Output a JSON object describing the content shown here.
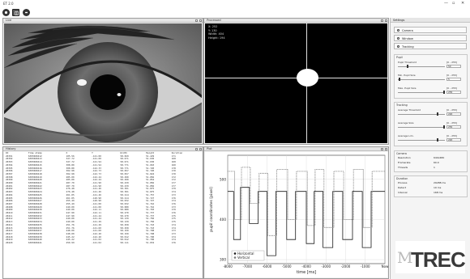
{
  "app": {
    "title": "ET 2.0",
    "window_controls": [
      "—",
      "▫",
      "✕"
    ]
  },
  "toolbar": {
    "buttons": [
      "record-button",
      "settings-button",
      "stop-button"
    ]
  },
  "panels": {
    "live": {
      "title": "Live"
    },
    "processed": {
      "title": "Processed",
      "roi": [
        "X: 252",
        "Y: 130",
        "Width: 404",
        "Height: 194"
      ]
    },
    "history": {
      "title": "History",
      "columns": [
        "ID",
        "Time stamp",
        "X",
        "Y",
        "Width",
        "Height",
        "Duration"
      ],
      "rows": [
        [
          "20391",
          "6383600412",
          "105.56",
          "-121.00",
          "58.829",
          "51.229",
          "171"
        ],
        [
          "20392",
          "6383600413",
          "327.72",
          "-121.00",
          "58.671",
          "51.630",
          "168"
        ],
        [
          "20393",
          "6383600414",
          "327.72",
          "-121.94",
          "58.671",
          "51.630",
          "168"
        ],
        [
          "20394",
          "6383600415",
          "308.80",
          "-121.94",
          "58.771",
          "51.663",
          "160"
        ],
        [
          "20395",
          "6383600416",
          "308.80",
          "-122.33",
          "58.771",
          "51.720",
          "178"
        ],
        [
          "20396",
          "6383600417",
          "302.98",
          "-122.73",
          "58.657",
          "51.720",
          "170"
        ],
        [
          "20397",
          "6383600418",
          "302.98",
          "-122.73",
          "58.657",
          "51.824",
          "170"
        ],
        [
          "20398",
          "6383600419",
          "285.00",
          "-122.44",
          "58.490",
          "51.856",
          "172"
        ],
        [
          "20399",
          "6383600420",
          "285.00",
          "-122.44",
          "58.490",
          "51.854",
          "172"
        ],
        [
          "20400",
          "6383600421",
          "287.70",
          "-121.90",
          "58.439",
          "51.856",
          "177"
        ],
        [
          "20401",
          "6383600422",
          "287.70",
          "-121.90",
          "58.439",
          "51.856",
          "177"
        ],
        [
          "20402",
          "6383600423",
          "276.48",
          "-121.46",
          "58.301",
          "51.875",
          "179"
        ],
        [
          "20403",
          "6383600424",
          "276.48",
          "-121.46",
          "58.301",
          "51.875",
          "174"
        ],
        [
          "20404",
          "6383600425",
          "261.05",
          "-121.46",
          "58.214",
          "51.757",
          "173"
        ],
        [
          "20405",
          "6383600426",
          "261.05",
          "-120.90",
          "58.214",
          "51.727",
          "176"
        ],
        [
          "20406",
          "6383600427",
          "255.49",
          "-120.90",
          "58.032",
          "51.727",
          "174"
        ],
        [
          "20407",
          "6383600428",
          "255.49",
          "-121.00",
          "58.032",
          "51.716",
          "176"
        ],
        [
          "20408",
          "6383600429",
          "249.00",
          "-121.00",
          "58.080",
          "51.716",
          "173"
        ],
        [
          "20409",
          "6383600430",
          "249.00",
          "-122.11",
          "58.080",
          "51.703",
          "179"
        ],
        [
          "20410",
          "6383600431",
          "247.90",
          "-122.11",
          "58.270",
          "51.737",
          "176"
        ],
        [
          "20411",
          "6383600432",
          "247.90",
          "-121.44",
          "58.270",
          "51.737",
          "175"
        ],
        [
          "20412",
          "6383600433",
          "249.00",
          "-121.44",
          "58.139",
          "51.750",
          "175"
        ],
        [
          "20413",
          "6383600434",
          "249.00",
          "-121.29",
          "58.139",
          "51.750",
          "175"
        ],
        [
          "20414",
          "6383600435",
          "251.76",
          "-121.29",
          "58.258",
          "51.743",
          "174"
        ],
        [
          "20415",
          "6383600436",
          "251.76",
          "-121.60",
          "58.258",
          "51.743",
          "174"
        ],
        [
          "20416",
          "6383600437",
          "248.00",
          "-121.60",
          "58.150",
          "51.798",
          "173"
        ],
        [
          "20417",
          "6383600438",
          "248.00",
          "-122.40",
          "58.150",
          "51.798",
          "173"
        ],
        [
          "20418",
          "6383600439",
          "245.22",
          "-122.40",
          "58.012",
          "51.790",
          "174"
        ],
        [
          "20419",
          "6383600440",
          "245.22",
          "-121.02",
          "58.012",
          "51.790",
          "174"
        ],
        [
          "20420",
          "6383600441",
          "250.99",
          "-121.02",
          "58.111",
          "51.832",
          "176"
        ]
      ]
    },
    "plot": {
      "title": "Plot"
    }
  },
  "chart_data": {
    "type": "line",
    "title": "",
    "xlabel": "time [ms]",
    "ylabel": "pupil coordinates [pixel]",
    "xlim": [
      -8000,
      0
    ],
    "ylim": [
      290,
      560
    ],
    "x_ticks": [
      "-8000",
      "-7000",
      "-6000",
      "-5000",
      "-4000",
      "-3000",
      "-2000",
      "-1000",
      "Now"
    ],
    "x_tick_values": [
      -8000,
      -7000,
      -6000,
      -5000,
      -4000,
      -3000,
      -2000,
      -1000,
      0
    ],
    "y_ticks": [
      "300",
      "400",
      "500"
    ],
    "y_tick_values": [
      300,
      400,
      500
    ],
    "legend": {
      "position": "bottom-left",
      "entries": [
        "Horizontal",
        "Vertical"
      ]
    },
    "series": [
      {
        "name": "Horizontal",
        "x": [
          -8000,
          -7700,
          -7700,
          -7350,
          -7350,
          -6900,
          -6900,
          -6450,
          -6450,
          -6000,
          -6000,
          -5550,
          -5550,
          -5000,
          -5000,
          -4550,
          -4550,
          -4000,
          -4000,
          -3600,
          -3600,
          -3150,
          -3150,
          -2650,
          -2650,
          -2150,
          -2150,
          -1650,
          -1650,
          -1150,
          -1150,
          -700,
          -700,
          0
        ],
        "y": [
          470,
          470,
          350,
          350,
          480,
          480,
          390,
          390,
          470,
          470,
          310,
          310,
          470,
          470,
          350,
          350,
          470,
          470,
          340,
          340,
          470,
          470,
          330,
          330,
          470,
          470,
          350,
          350,
          470,
          470,
          330,
          330,
          470,
          470
        ]
      },
      {
        "name": "Vertical",
        "x": [
          -8000,
          -7650,
          -7650,
          -7300,
          -7300,
          -6850,
          -6850,
          -6400,
          -6400,
          -5950,
          -5950,
          -5500,
          -5500,
          -4950,
          -4950,
          -4500,
          -4500,
          -3950,
          -3950,
          -3550,
          -3550,
          -3100,
          -3100,
          -2600,
          -2600,
          -2100,
          -2100,
          -1600,
          -1600,
          -1100,
          -1100,
          -650,
          -650,
          0
        ],
        "y": [
          520,
          520,
          400,
          400,
          530,
          530,
          440,
          440,
          515,
          515,
          360,
          360,
          525,
          525,
          400,
          400,
          520,
          520,
          385,
          385,
          525,
          525,
          380,
          380,
          520,
          520,
          400,
          400,
          525,
          525,
          380,
          380,
          520,
          520
        ]
      }
    ]
  },
  "sidebar": {
    "title": "Settings",
    "buttons": [
      "Camera",
      "Window",
      "Tracking"
    ],
    "pupil": {
      "title": "Pupil",
      "controls": [
        {
          "label": "Pupil Threshold",
          "range": "[0 - 255]",
          "value": "50",
          "level": 0.2
        },
        {
          "label": "Min. Pupil Size",
          "range": "[0 - 255]",
          "value": "5",
          "level": 0.02
        },
        {
          "label": "Max. Pupil Size",
          "range": "[0 - 255]",
          "value": "255",
          "level": 1.0
        }
      ]
    },
    "glint": {
      "title": "Tracking",
      "controls": [
        {
          "label": "Average Threshold",
          "range": "[0 - 255]",
          "value": "220",
          "level": 0.86
        },
        {
          "label": "Average Size",
          "range": "[0 - 255]",
          "value": "255",
          "level": 1.0
        },
        {
          "label": "Average Lim.",
          "range": "[0 - 255]",
          "value": "220",
          "level": 0.86
        }
      ]
    },
    "camera_info": {
      "title": "Camera",
      "rows": [
        {
          "k": "Resolution",
          "v": "640x480"
        },
        {
          "k": "Framerate",
          "v": "60.0"
        },
        {
          "k": "Threads",
          "v": "1"
        }
      ]
    },
    "duration": {
      "title": "Duration",
      "rows": [
        {
          "k": "Process",
          "v": "29288 ms"
        },
        {
          "k": "Detect",
          "v": "19 ms"
        },
        {
          "k": "Interval",
          "v": "168 ms"
        }
      ]
    }
  },
  "logo": {
    "mark": "M",
    "text": "TREC"
  },
  "colors": {
    "accent": "#000000",
    "panel_bg": "#f3f3f3",
    "plot_line": "#333333"
  }
}
